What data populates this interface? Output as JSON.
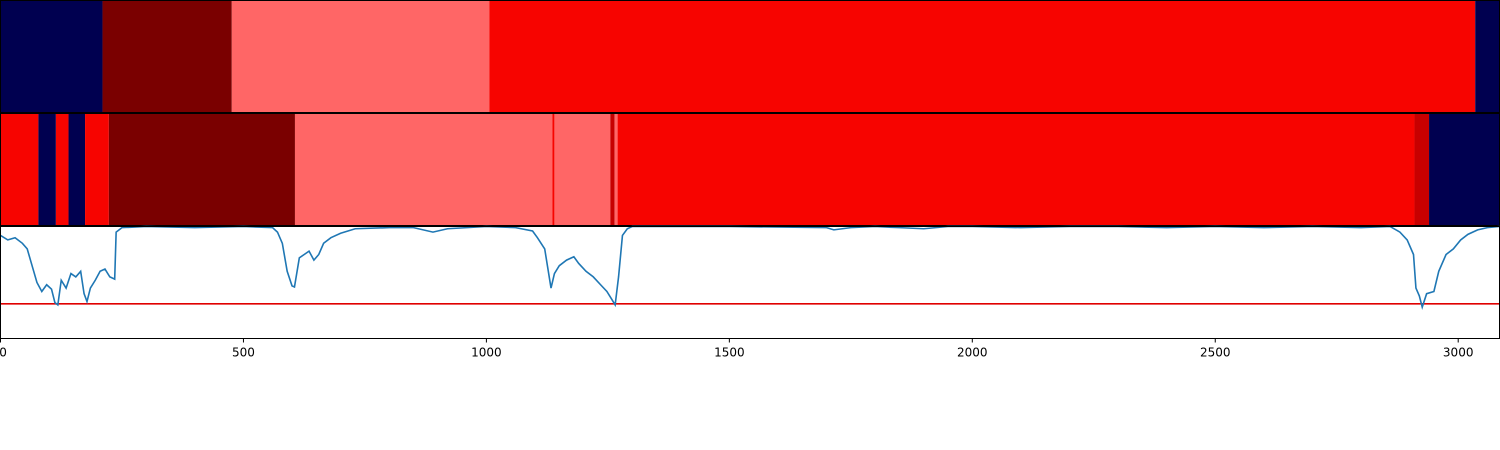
{
  "chart_data": {
    "type": "segmentation-and-line",
    "xlim": [
      0,
      3085
    ],
    "x_ticks": [
      0,
      500,
      1000,
      1500,
      2000,
      2500,
      3000
    ],
    "x_tick_labels": [
      "0",
      "500",
      "1000",
      "1500",
      "2000",
      "2500",
      "3000"
    ],
    "colors": {
      "navy": "#000050",
      "dark_red": "#7a0000",
      "pink": "#ff6666",
      "red": "#f70400",
      "mid_red": "#c80000",
      "line": "#1f77b4",
      "threshold": "#e00000"
    },
    "tracks": [
      {
        "segments": [
          {
            "start": 0,
            "end": 210,
            "color": "navy"
          },
          {
            "start": 210,
            "end": 476,
            "color": "dark_red"
          },
          {
            "start": 476,
            "end": 1006,
            "color": "pink"
          },
          {
            "start": 1006,
            "end": 3035,
            "color": "red"
          },
          {
            "start": 3035,
            "end": 3085,
            "color": "navy"
          }
        ]
      },
      {
        "segments": [
          {
            "start": 0,
            "end": 78,
            "color": "red"
          },
          {
            "start": 78,
            "end": 114,
            "color": "navy"
          },
          {
            "start": 114,
            "end": 140,
            "color": "red"
          },
          {
            "start": 140,
            "end": 174,
            "color": "navy"
          },
          {
            "start": 174,
            "end": 223,
            "color": "red"
          },
          {
            "start": 223,
            "end": 606,
            "color": "dark_red"
          },
          {
            "start": 606,
            "end": 1136,
            "color": "pink"
          },
          {
            "start": 1136,
            "end": 1140,
            "color": "red"
          },
          {
            "start": 1140,
            "end": 1255,
            "color": "pink"
          },
          {
            "start": 1255,
            "end": 1264,
            "color": "mid_red"
          },
          {
            "start": 1264,
            "end": 1270,
            "color": "pink"
          },
          {
            "start": 1270,
            "end": 2910,
            "color": "red"
          },
          {
            "start": 2910,
            "end": 2940,
            "color": "mid_red"
          },
          {
            "start": 2940,
            "end": 3085,
            "color": "navy"
          }
        ]
      }
    ],
    "line": {
      "ylim": [
        0,
        1
      ],
      "threshold": 0.31,
      "points": [
        [
          0,
          0.92
        ],
        [
          15,
          0.88
        ],
        [
          30,
          0.9
        ],
        [
          45,
          0.85
        ],
        [
          55,
          0.8
        ],
        [
          65,
          0.65
        ],
        [
          75,
          0.5
        ],
        [
          85,
          0.42
        ],
        [
          95,
          0.48
        ],
        [
          105,
          0.44
        ],
        [
          112,
          0.32
        ],
        [
          118,
          0.3
        ],
        [
          125,
          0.52
        ],
        [
          135,
          0.45
        ],
        [
          145,
          0.58
        ],
        [
          155,
          0.55
        ],
        [
          165,
          0.6
        ],
        [
          172,
          0.4
        ],
        [
          178,
          0.33
        ],
        [
          185,
          0.45
        ],
        [
          195,
          0.52
        ],
        [
          205,
          0.6
        ],
        [
          215,
          0.62
        ],
        [
          225,
          0.55
        ],
        [
          235,
          0.53
        ],
        [
          238,
          0.95
        ],
        [
          250,
          0.99
        ],
        [
          300,
          1.0
        ],
        [
          400,
          0.99
        ],
        [
          500,
          1.0
        ],
        [
          560,
          0.99
        ],
        [
          570,
          0.95
        ],
        [
          580,
          0.85
        ],
        [
          590,
          0.6
        ],
        [
          600,
          0.47
        ],
        [
          605,
          0.46
        ],
        [
          615,
          0.72
        ],
        [
          625,
          0.75
        ],
        [
          635,
          0.78
        ],
        [
          645,
          0.7
        ],
        [
          655,
          0.75
        ],
        [
          665,
          0.85
        ],
        [
          680,
          0.9
        ],
        [
          700,
          0.94
        ],
        [
          730,
          0.98
        ],
        [
          800,
          0.99
        ],
        [
          850,
          0.99
        ],
        [
          890,
          0.95
        ],
        [
          920,
          0.98
        ],
        [
          1000,
          1.0
        ],
        [
          1060,
          0.99
        ],
        [
          1095,
          0.96
        ],
        [
          1105,
          0.9
        ],
        [
          1120,
          0.8
        ],
        [
          1133,
          0.45
        ],
        [
          1140,
          0.58
        ],
        [
          1150,
          0.65
        ],
        [
          1165,
          0.7
        ],
        [
          1180,
          0.73
        ],
        [
          1190,
          0.67
        ],
        [
          1205,
          0.6
        ],
        [
          1220,
          0.55
        ],
        [
          1235,
          0.48
        ],
        [
          1248,
          0.42
        ],
        [
          1258,
          0.35
        ],
        [
          1265,
          0.3
        ],
        [
          1272,
          0.55
        ],
        [
          1280,
          0.92
        ],
        [
          1290,
          0.98
        ],
        [
          1300,
          1.0
        ],
        [
          1500,
          1.0
        ],
        [
          1700,
          0.99
        ],
        [
          1715,
          0.97
        ],
        [
          1750,
          0.99
        ],
        [
          1800,
          1.0
        ],
        [
          1850,
          0.99
        ],
        [
          1900,
          0.98
        ],
        [
          1950,
          1.0
        ],
        [
          2000,
          1.0
        ],
        [
          2100,
          0.99
        ],
        [
          2200,
          1.0
        ],
        [
          2300,
          1.0
        ],
        [
          2400,
          0.99
        ],
        [
          2500,
          1.0
        ],
        [
          2600,
          0.99
        ],
        [
          2700,
          1.0
        ],
        [
          2800,
          0.99
        ],
        [
          2860,
          1.0
        ],
        [
          2880,
          0.95
        ],
        [
          2895,
          0.88
        ],
        [
          2908,
          0.75
        ],
        [
          2913,
          0.45
        ],
        [
          2920,
          0.38
        ],
        [
          2926,
          0.28
        ],
        [
          2935,
          0.4
        ],
        [
          2950,
          0.42
        ],
        [
          2960,
          0.6
        ],
        [
          2975,
          0.75
        ],
        [
          2990,
          0.8
        ],
        [
          3005,
          0.88
        ],
        [
          3020,
          0.93
        ],
        [
          3040,
          0.97
        ],
        [
          3060,
          0.99
        ],
        [
          3085,
          1.0
        ]
      ]
    }
  }
}
